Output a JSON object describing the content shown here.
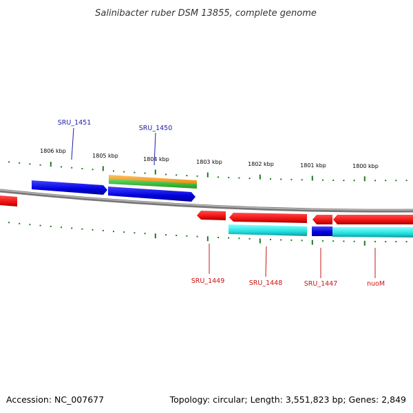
{
  "title": "Salinibacter ruber DSM 13855, complete genome",
  "footer": {
    "accession": "Accession: NC_007677",
    "summary": "Topology: circular; Length: 3,551,823 bp; Genes: 2,849"
  },
  "kbp_ticks": [
    "1806 kbp",
    "1805 kbp",
    "1804 kbp",
    "1803 kbp",
    "1802 kbp",
    "1801 kbp",
    "1800 kbp"
  ],
  "gene_labels": {
    "forward": [
      "SRU_1451",
      "SRU_1450"
    ],
    "reverse": [
      "SRU_1449",
      "SRU_1448",
      "SRU_1447",
      "nuoM"
    ]
  },
  "colors": {
    "forward_label": "#1a1aaa",
    "reverse_label": "#cc1111",
    "forward_cds": "#0000dd",
    "reverse_cds": "#ee1111",
    "cyan_feature": "#22e0e0",
    "orange_feature": "#ff9900",
    "green_feature": "#33bb33",
    "backbone": "#888888",
    "tick": "#1a7a1a"
  }
}
